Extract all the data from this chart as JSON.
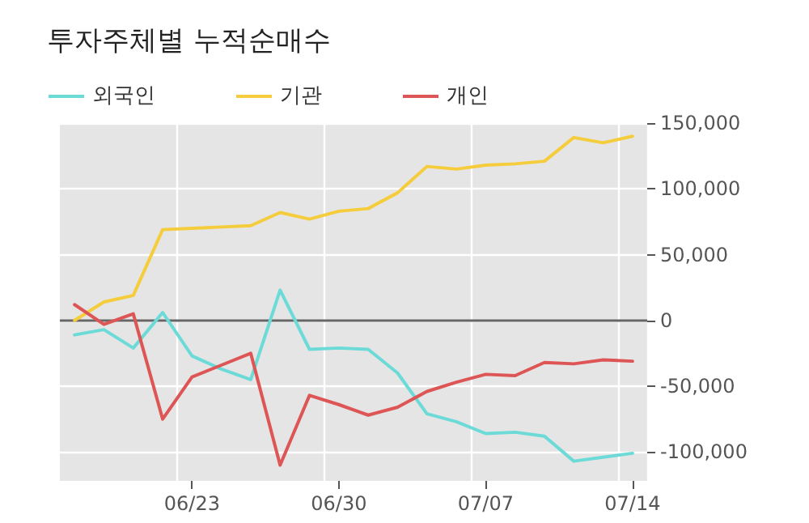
{
  "chart_data": {
    "type": "line",
    "title": "투자주체별 누적순매수",
    "categories": [
      null,
      null,
      null,
      null,
      "06/23",
      null,
      null,
      null,
      null,
      "06/30",
      null,
      null,
      null,
      null,
      "07/07",
      null,
      null,
      null,
      null,
      "07/14"
    ],
    "series": [
      {
        "name": "외국인",
        "color": "#6cdbd8",
        "values": [
          -11000,
          -7000,
          -21000,
          6000,
          -27000,
          -37000,
          -45000,
          23000,
          -22000,
          -21000,
          -22000,
          -40000,
          -71000,
          -77000,
          -86000,
          -85000,
          -88000,
          -107000,
          -104000,
          -101000
        ]
      },
      {
        "name": "기관",
        "color": "#f5cc3c",
        "values": [
          0,
          14000,
          19000,
          69000,
          70000,
          71000,
          72000,
          82000,
          77000,
          83000,
          85000,
          97000,
          117000,
          115000,
          118000,
          119000,
          121000,
          139000,
          135000,
          140000
        ]
      },
      {
        "name": "개인",
        "color": "#dd5555",
        "values": [
          12000,
          -3000,
          5000,
          -75000,
          -43000,
          -34000,
          -25000,
          -110000,
          -57000,
          -64000,
          -72000,
          -66000,
          -54000,
          -47000,
          -41000,
          -42000,
          -32000,
          -33000,
          -30000,
          -31000
        ]
      }
    ],
    "ylim": [
      -122000,
      150000
    ],
    "yticks": [
      {
        "value": -100000,
        "label": "-100,000"
      },
      {
        "value": -50000,
        "label": "-50,000"
      },
      0,
      {
        "value": 50000,
        "label": "50,000"
      },
      {
        "value": 100000,
        "label": "100,000"
      },
      {
        "value": 150000,
        "label": "150,000"
      }
    ],
    "ref_lines": [
      {
        "axis": "y",
        "value": 0,
        "color": "#666666"
      }
    ],
    "grid": true,
    "legend": "top left",
    "marker": "none",
    "line_style": "solid"
  }
}
